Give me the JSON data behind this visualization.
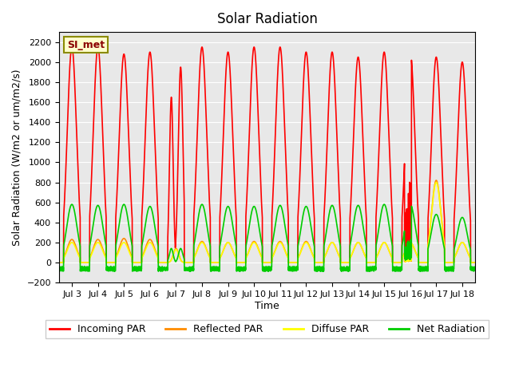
{
  "title": "Solar Radiation",
  "ylabel": "Solar Radiation (W/m2 or um/m2/s)",
  "xlabel": "Time",
  "ylim": [
    -200,
    2300
  ],
  "yticks": [
    -200,
    0,
    200,
    400,
    600,
    800,
    1000,
    1200,
    1400,
    1600,
    1800,
    2000,
    2200
  ],
  "x_tick_positions": [
    0.5,
    1.5,
    2.5,
    3.5,
    4.5,
    5.5,
    6.5,
    7.5,
    8.5,
    9.5,
    10.5,
    11.5,
    12.5,
    13.5,
    14.5,
    15.5
  ],
  "x_tick_labels": [
    "Jul 3",
    "Jul 4",
    "Jul 5",
    "Jul 6",
    "Jul 7",
    "Jul 8",
    "Jul 9",
    "Jul 10",
    "Jul 11",
    "Jul 12",
    "Jul 13",
    "Jul 14",
    "Jul 15",
    "Jul 16",
    "Jul 17",
    "Jul 18"
  ],
  "station_label": "SI_met",
  "bg_color": "#e8e8e8",
  "series": {
    "incoming_par": {
      "color": "#ff0000",
      "label": "Incoming PAR",
      "lw": 1.2
    },
    "reflected_par": {
      "color": "#ff8c00",
      "label": "Reflected PAR",
      "lw": 1.2
    },
    "diffuse_par": {
      "color": "#ffff00",
      "label": "Diffuse PAR",
      "lw": 1.2
    },
    "net_radiation": {
      "color": "#00cc00",
      "label": "Net Radiation",
      "lw": 1.2
    }
  },
  "n_days": 16,
  "points_per_day": 288,
  "day_peaks_incoming": [
    2150,
    2150,
    2080,
    2100,
    1970,
    2150,
    2100,
    2150,
    2150,
    2100,
    2100,
    2050,
    2100,
    2100,
    2050,
    2000
  ],
  "day_peaks_reflected": [
    230,
    230,
    240,
    230,
    140,
    210,
    200,
    210,
    210,
    210,
    200,
    200,
    200,
    200,
    820,
    200
  ],
  "day_peaks_diffuse": [
    200,
    200,
    200,
    200,
    130,
    200,
    200,
    200,
    200,
    200,
    200,
    200,
    200,
    200,
    800,
    200
  ],
  "day_peaks_net": [
    580,
    570,
    580,
    560,
    280,
    580,
    560,
    560,
    570,
    560,
    570,
    570,
    580,
    580,
    480,
    450
  ],
  "night_min_net": -80
}
